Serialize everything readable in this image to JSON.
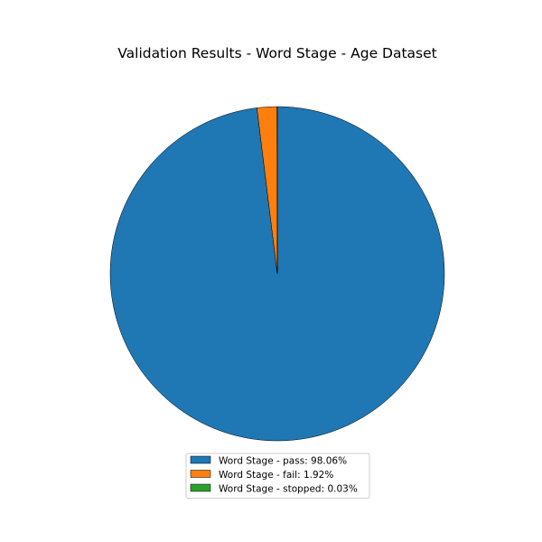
{
  "chart_data": {
    "type": "pie",
    "title": "Validation Results - Word Stage - Age Dataset",
    "start_angle_deg": 90,
    "direction": "clockwise",
    "legend_position": "bottom-center",
    "slices": [
      {
        "label": "Word Stage - pass",
        "value": 98.06,
        "color": "#1f77b4",
        "legend_text": "Word Stage - pass: 98.06%"
      },
      {
        "label": "Word Stage - fail",
        "value": 1.92,
        "color": "#ff7f0e",
        "legend_text": "Word Stage - fail: 1.92%"
      },
      {
        "label": "Word Stage - stopped",
        "value": 0.03,
        "color": "#2ca02c",
        "legend_text": "Word Stage - stopped: 0.03%"
      }
    ]
  }
}
